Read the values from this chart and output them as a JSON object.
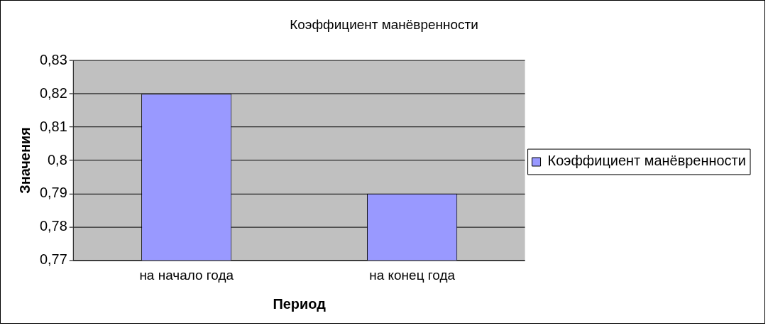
{
  "chart_data": {
    "type": "bar",
    "title": "Коэффициент манёвренности",
    "xlabel": "Период",
    "ylabel": "Значения",
    "categories": [
      "на начало года",
      "на конец года"
    ],
    "series": [
      {
        "name": "Коэффициент манёвренности",
        "color": "#9999ff",
        "values": [
          0.82,
          0.79
        ]
      }
    ],
    "ylim": [
      0.77,
      0.83
    ],
    "yticks": [
      {
        "value": 0.77,
        "label": "0,77"
      },
      {
        "value": 0.78,
        "label": "0,78"
      },
      {
        "value": 0.79,
        "label": "0,79"
      },
      {
        "value": 0.8,
        "label": "0,8"
      },
      {
        "value": 0.81,
        "label": "0,81"
      },
      {
        "value": 0.82,
        "label": "0,82"
      },
      {
        "value": 0.83,
        "label": "0,83"
      }
    ],
    "grid": "y",
    "legend": "right"
  }
}
